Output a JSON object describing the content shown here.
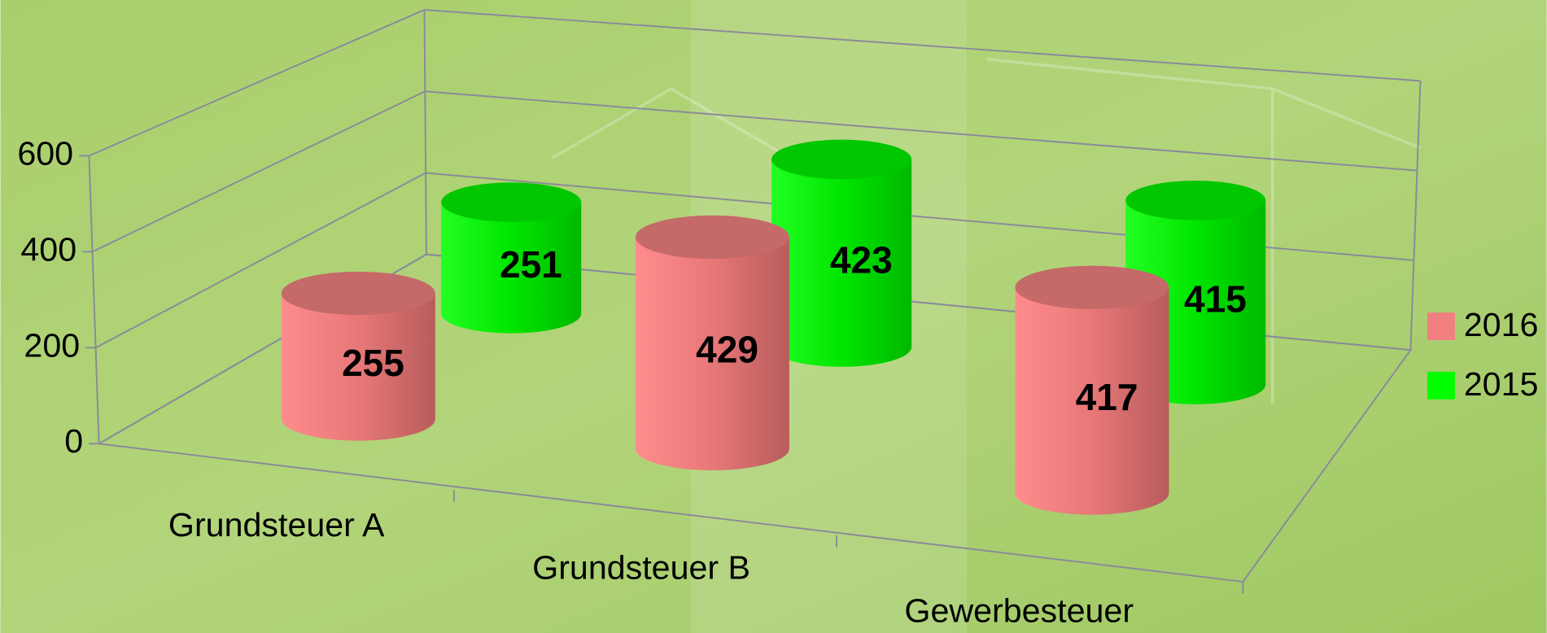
{
  "chart_data": {
    "type": "cylinder3d",
    "categories": [
      "Grundsteuer A",
      "Grundsteuer B",
      "Gewerbesteuer"
    ],
    "series": [
      {
        "name": "2016",
        "color": "#f08080",
        "values": [
          255,
          429,
          417
        ]
      },
      {
        "name": "2015",
        "color": "#00ff00",
        "values": [
          251,
          423,
          415
        ]
      }
    ],
    "ylim": [
      0,
      600
    ],
    "yticks": [
      0,
      200,
      400,
      600
    ],
    "grid": true,
    "legend": "right"
  }
}
